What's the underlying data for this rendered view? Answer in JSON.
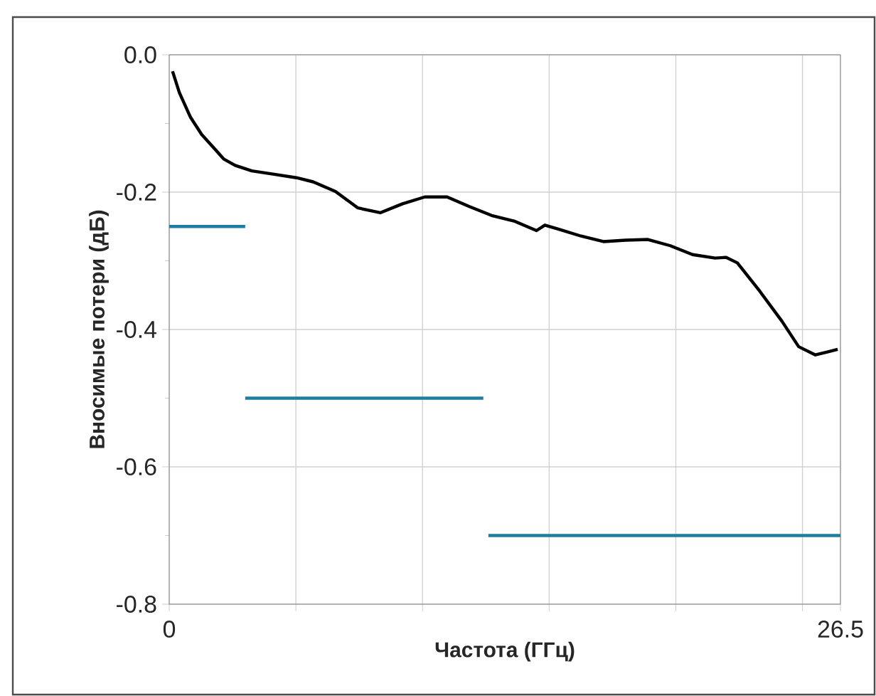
{
  "chart_data": {
    "type": "line",
    "xlabel": "Частота (ГГц)",
    "ylabel": "Вносимые потери (дБ)",
    "xlim": [
      0,
      26.5
    ],
    "ylim": [
      -0.8,
      0.0
    ],
    "xticks": [
      0,
      {
        "value": 5,
        "label": null
      },
      {
        "value": 10,
        "label": null
      },
      {
        "value": 15,
        "label": null
      },
      {
        "value": 20,
        "label": null
      },
      {
        "value": 25,
        "label": null
      },
      26.5
    ],
    "yticks": [
      -0.8,
      -0.6,
      -0.4,
      -0.2,
      {
        "value": 0,
        "label": "0.0"
      }
    ],
    "grid": true,
    "marker": "none",
    "line_style": "solid",
    "series": [
      {
        "color": "#000000",
        "x": [
          0.13,
          0.4,
          0.84,
          1.28,
          1.72,
          2.16,
          2.6,
          3.26,
          4.14,
          5.02,
          5.68,
          6.56,
          7.45,
          8.33,
          9.21,
          10.09,
          10.97,
          11.85,
          12.73,
          13.61,
          14.5,
          14.83,
          15.38,
          16.26,
          17.14,
          18.02,
          18.9,
          19.78,
          20.66,
          21.55,
          21.99,
          22.43,
          23.31,
          24.19,
          24.85,
          25.51,
          25.95,
          26.39
        ],
        "values": [
          -0.024,
          -0.055,
          -0.091,
          -0.116,
          -0.134,
          -0.152,
          -0.161,
          -0.169,
          -0.174,
          -0.179,
          -0.185,
          -0.199,
          -0.223,
          -0.23,
          -0.217,
          -0.207,
          -0.207,
          -0.221,
          -0.234,
          -0.242,
          -0.256,
          -0.248,
          -0.254,
          -0.264,
          -0.272,
          -0.27,
          -0.269,
          -0.278,
          -0.291,
          -0.296,
          -0.295,
          -0.303,
          -0.344,
          -0.388,
          -0.425,
          -0.437,
          -0.433,
          -0.429
        ]
      },
      {
        "color": "#1f7ca3",
        "x": [
          0,
          3
        ],
        "values": [
          -0.25,
          -0.25
        ]
      },
      {
        "color": "#1f7ca3",
        "x": [
          3,
          12.4
        ],
        "values": [
          -0.5,
          -0.5
        ]
      },
      {
        "color": "#1f7ca3",
        "x": [
          12.6,
          26.5
        ],
        "values": [
          -0.7,
          -0.7
        ]
      }
    ]
  }
}
